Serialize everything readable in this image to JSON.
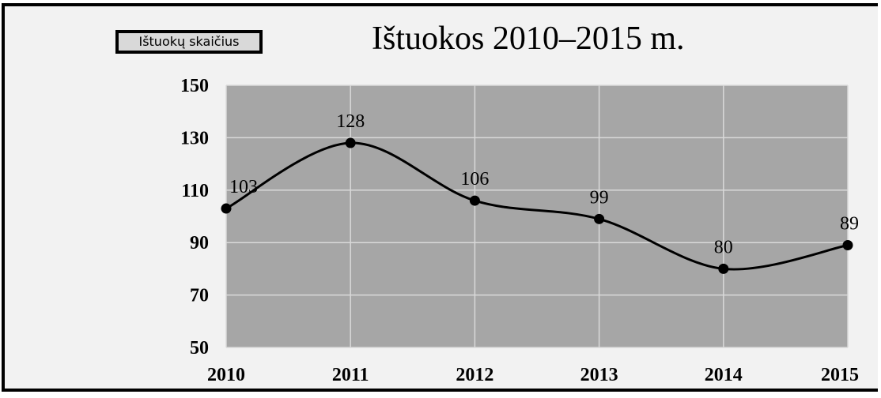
{
  "chart_data": {
    "type": "line",
    "title": "Ištuokos 2010–2015 m.",
    "legend": [
      "Ištuokų skaičius"
    ],
    "legend_position": "top-left",
    "categories": [
      "2010",
      "2011",
      "2012",
      "2013",
      "2014",
      "2015"
    ],
    "series": [
      {
        "name": "Ištuokų skaičius",
        "values": [
          103,
          128,
          106,
          99,
          80,
          89
        ],
        "data_labels": [
          "103",
          "128",
          "106",
          "99",
          "80",
          "89"
        ]
      }
    ],
    "ylim": [
      50,
      150
    ],
    "yticks": [
      "50",
      "70",
      "90",
      "110",
      "130",
      "150"
    ],
    "grid": true,
    "smooth": true,
    "colors": {
      "plot_background": "#a6a6a6",
      "gridline": "#d9d9d9",
      "line": "#000000",
      "marker": "#000000"
    }
  }
}
